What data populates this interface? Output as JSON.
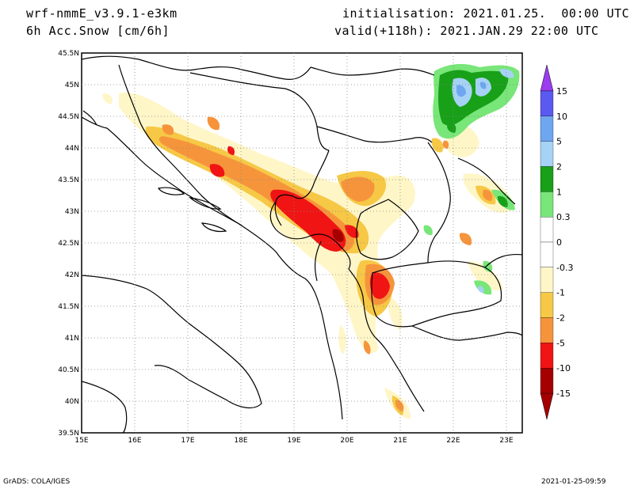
{
  "header": {
    "model": "wrf-nmmE_v3.9.1-e3km",
    "variable": "6h Acc.Snow [cm/6h]",
    "init": "initialisation: 2021.01.25.  00:00 UTC",
    "valid": "valid(+118h): 2021.JAN.29 22:00 UTC"
  },
  "map": {
    "lat_labels": [
      "45.5N",
      "45N",
      "44.5N",
      "44N",
      "43.5N",
      "43N",
      "42.5N",
      "42N",
      "41.5N",
      "41N",
      "40.5N",
      "40N",
      "39.5N"
    ],
    "lon_labels": [
      "15E",
      "16E",
      "17E",
      "18E",
      "19E",
      "20E",
      "21E",
      "22E",
      "23E"
    ]
  },
  "colorbar": {
    "labels": [
      "15",
      "10",
      "5",
      "2",
      "1",
      "0.3",
      "0",
      "-0.3",
      "-1",
      "-2",
      "-5",
      "-10",
      "-15"
    ],
    "colors": [
      "#9b3cf0",
      "#5a5af0",
      "#6ea6f0",
      "#a6d2f6",
      "#18a018",
      "#78e678",
      "#ffffff",
      "#ffffff",
      "#fff6c8",
      "#f6c846",
      "#f6943c",
      "#f01414",
      "#a50000"
    ]
  },
  "footer": {
    "left": "GrADS: COLA/IGES",
    "right": "2021-01-25-09:59"
  }
}
